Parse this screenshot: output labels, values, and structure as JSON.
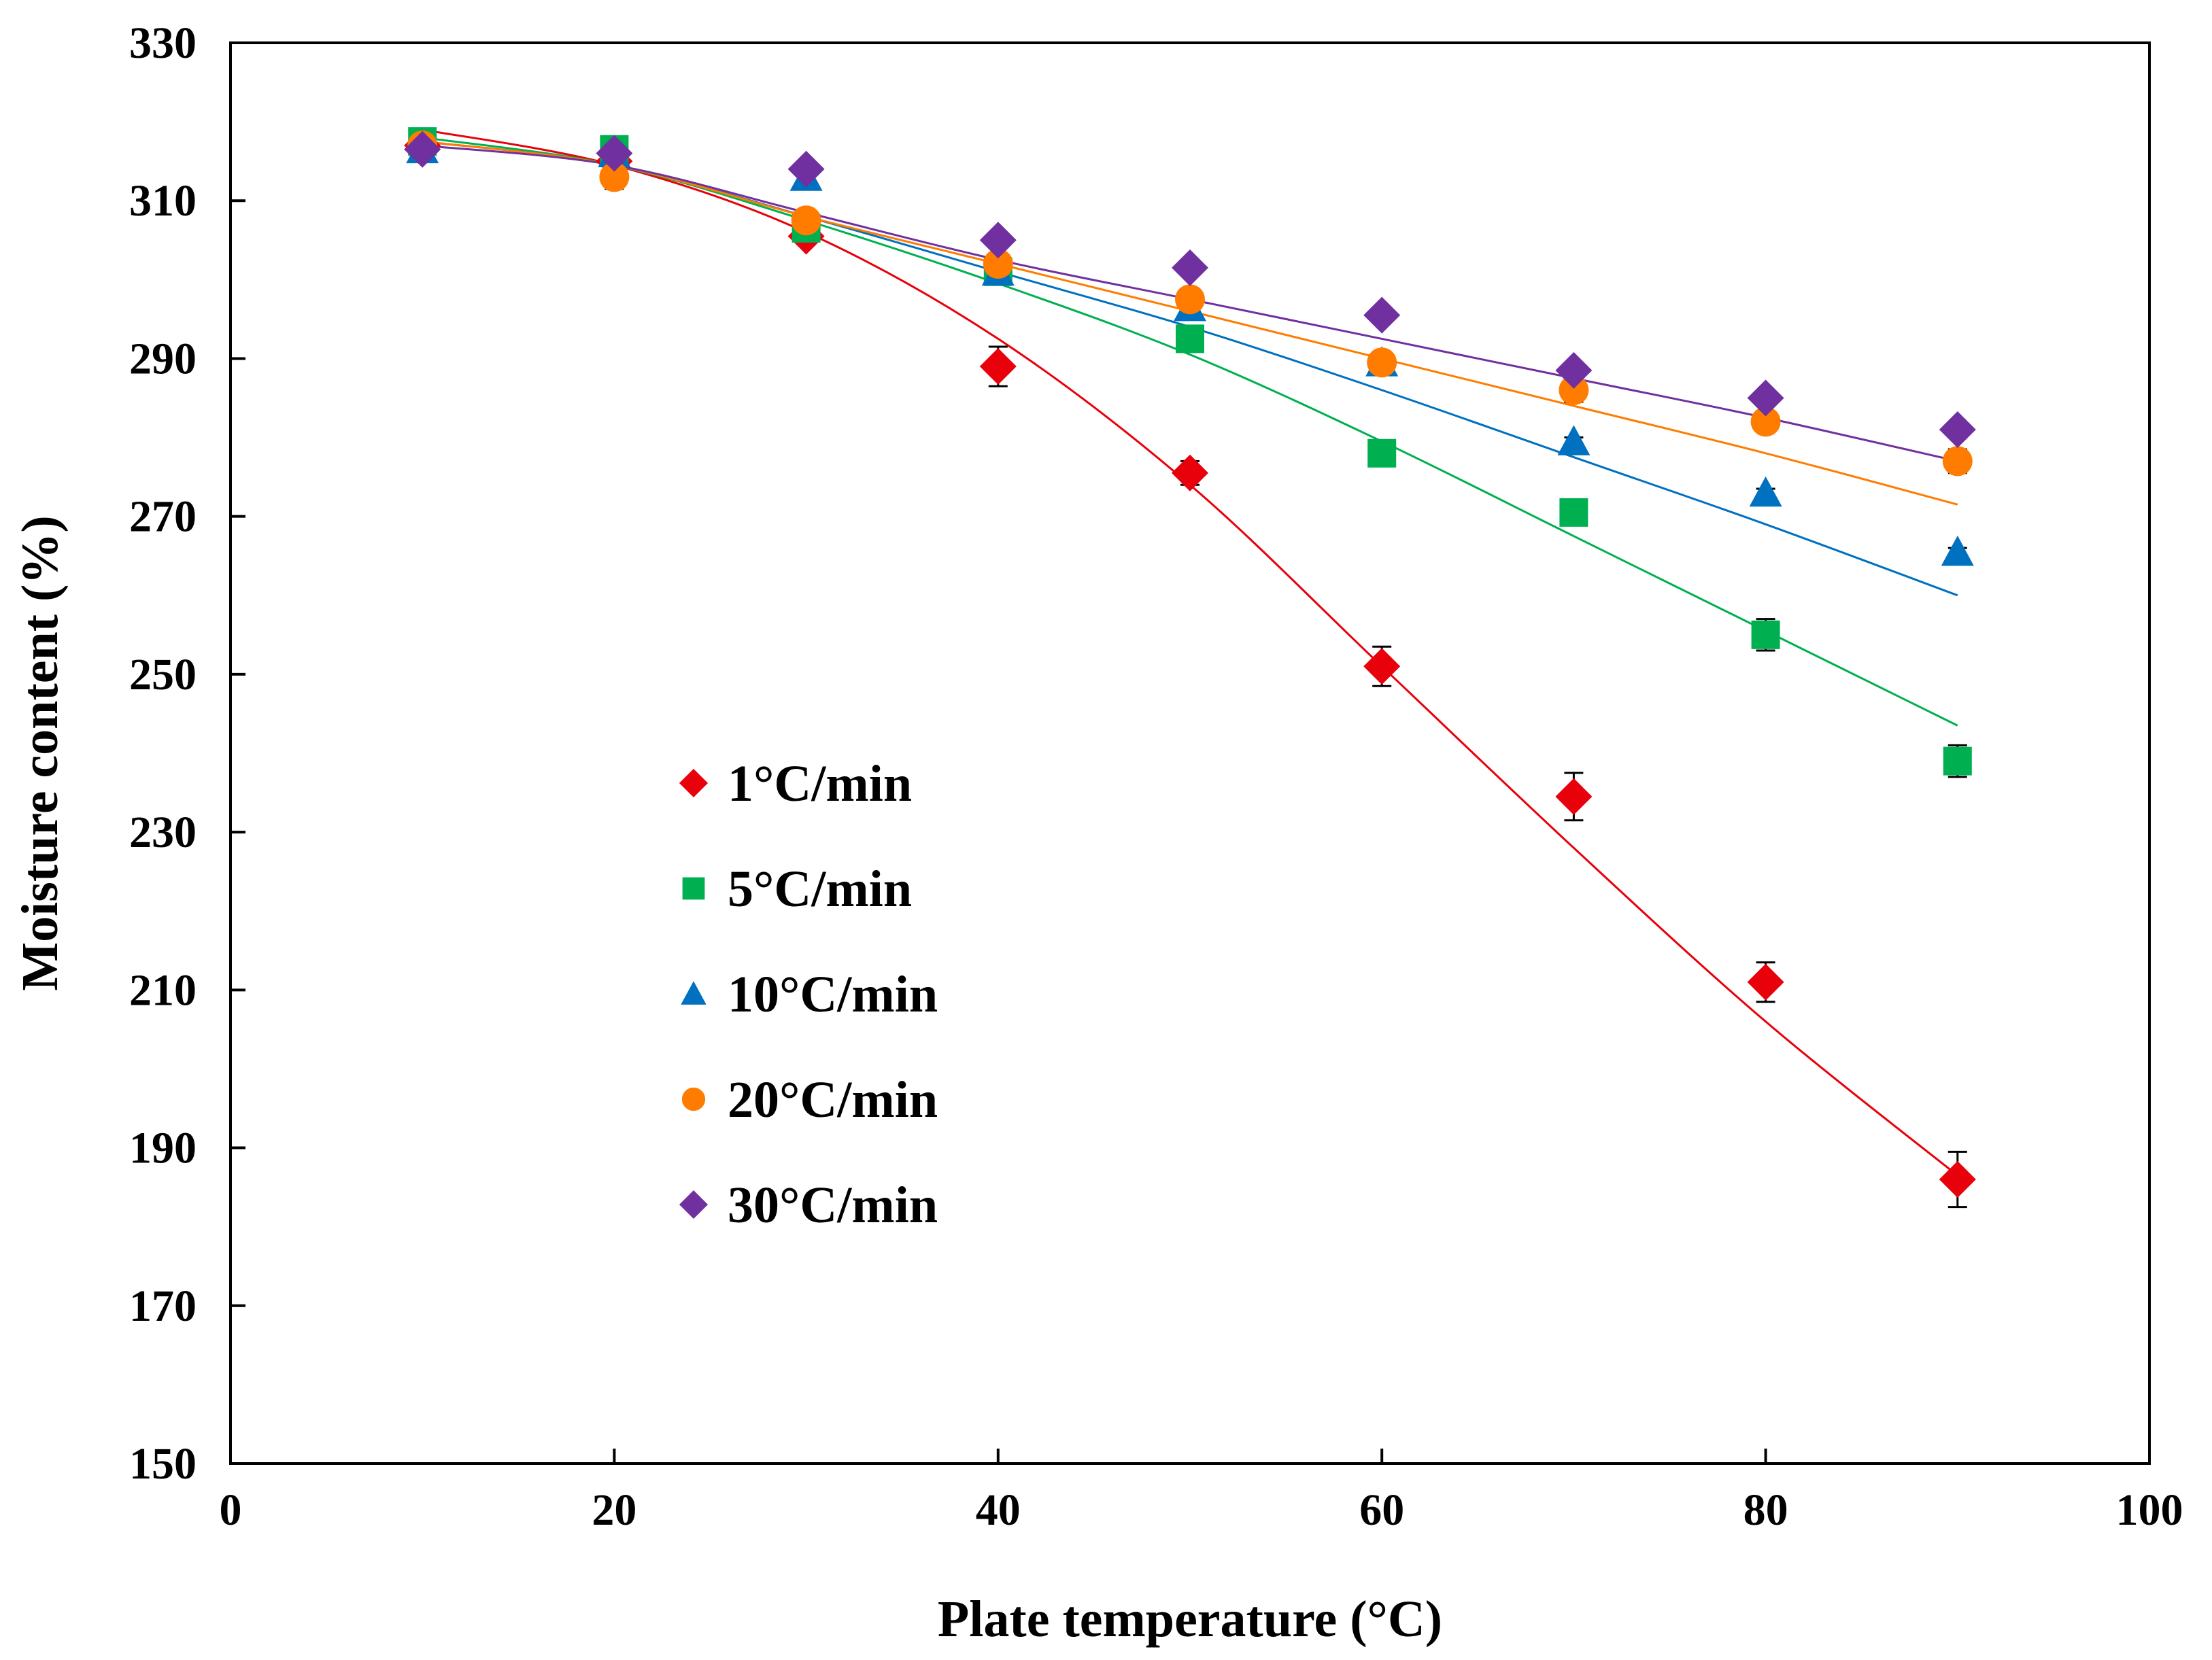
{
  "chart_data": {
    "type": "scatter",
    "xlabel": "Plate temperature (°C)",
    "ylabel": "Moisture content (%)",
    "xlim": [
      0,
      100
    ],
    "ylim": [
      150,
      330
    ],
    "xticks": [
      "0",
      "20",
      "40",
      "60",
      "80",
      "100"
    ],
    "yticks": [
      "150",
      "170",
      "190",
      "210",
      "230",
      "250",
      "270",
      "290",
      "310",
      "330"
    ],
    "grid": false,
    "legend_position": "center-left",
    "x": [
      10,
      20,
      30,
      40,
      50,
      60,
      70,
      80,
      90
    ],
    "series": [
      {
        "name": "1°C/min",
        "color": "#e8000b",
        "marker": "diamond",
        "values": [
          317,
          315,
          305.5,
          289,
          275.5,
          251,
          234.5,
          211,
          186
        ],
        "errors": [
          1,
          1,
          1,
          2.5,
          1.5,
          2.5,
          3,
          2.5,
          3.5
        ],
        "fit": [
          319,
          314.5,
          306,
          292.5,
          274,
          251,
          228,
          206,
          186.5
        ]
      },
      {
        "name": "5°C/min",
        "color": "#00b050",
        "marker": "square",
        "values": [
          317.5,
          316.5,
          306.5,
          301,
          292.5,
          278,
          270.5,
          255,
          239
        ],
        "errors": [
          0.5,
          0.5,
          0.5,
          0.5,
          1,
          1,
          1,
          2,
          2
        ],
        "fit": [
          318,
          314.5,
          307.5,
          299.5,
          290.5,
          279.5,
          267.5,
          255.5,
          243.5
        ]
      },
      {
        "name": "10°C/min",
        "color": "#0070c0",
        "marker": "triangle",
        "values": [
          316.5,
          316,
          313,
          301,
          296.5,
          289.5,
          279.5,
          273,
          265.5
        ],
        "errors": [
          0.5,
          0.5,
          0.5,
          0.5,
          0.5,
          0.5,
          0.5,
          0.5,
          0.5
        ],
        "fit": [
          317.5,
          314.5,
          308,
          301,
          294,
          286,
          277.5,
          269,
          260
        ]
      },
      {
        "name": "20°C/min",
        "color": "#ff7c00",
        "marker": "circle",
        "values": [
          317,
          313,
          307.5,
          302,
          297.5,
          289.5,
          286,
          282,
          277
        ],
        "errors": [
          0.5,
          1.5,
          0.5,
          0.5,
          0.5,
          0.5,
          1.5,
          0.5,
          1.5
        ],
        "fit": [
          317.5,
          314.5,
          308,
          302,
          296,
          290,
          284,
          278,
          271.5
        ]
      },
      {
        "name": "30°C/min",
        "color": "#7030a0",
        "marker": "diamond",
        "values": [
          316.5,
          316,
          314,
          305,
          301.5,
          295.5,
          288.5,
          285,
          281
        ],
        "errors": [
          0.5,
          0.5,
          0.5,
          0.5,
          0.5,
          0.5,
          0.5,
          0.5,
          0.5
        ],
        "fit": [
          317,
          314.5,
          308.5,
          302.5,
          297.5,
          292.5,
          287.5,
          282.5,
          277
        ]
      }
    ]
  }
}
